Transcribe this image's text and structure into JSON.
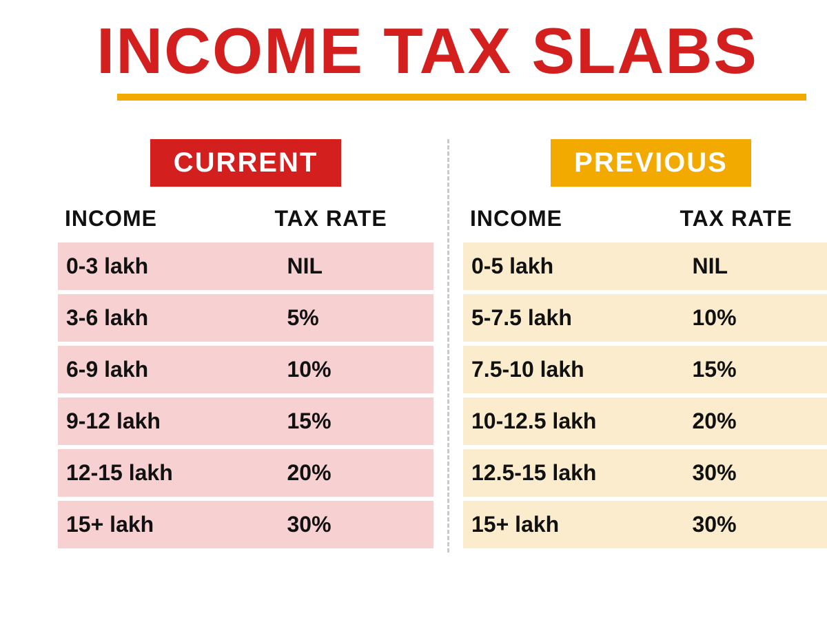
{
  "title": "INCOME TAX SLABS",
  "title_color": "#d41f1f",
  "underline_color": "#f2a900",
  "background_color": "#ffffff",
  "text_color": "#111111",
  "divider_color": "#c9c9c9",
  "columns": {
    "income_label": "INCOME",
    "rate_label": "TAX RATE"
  },
  "left": {
    "badge": "CURRENT",
    "badge_bg": "#d41f1f",
    "badge_text": "#ffffff",
    "row_bg": "#f7d0d2",
    "rows": [
      {
        "income": "0-3 lakh",
        "rate": "NIL"
      },
      {
        "income": "3-6 lakh",
        "rate": "5%"
      },
      {
        "income": "6-9 lakh",
        "rate": "10%"
      },
      {
        "income": "9-12 lakh",
        "rate": "15%"
      },
      {
        "income": "12-15 lakh",
        "rate": "20%"
      },
      {
        "income": "15+ lakh",
        "rate": "30%"
      }
    ]
  },
  "right": {
    "badge": "PREVIOUS",
    "badge_bg": "#f2a900",
    "badge_text": "#ffffff",
    "row_bg": "#faeccd",
    "rows": [
      {
        "income": "0-5 lakh",
        "rate": "NIL"
      },
      {
        "income": "5-7.5 lakh",
        "rate": "10%"
      },
      {
        "income": "7.5-10 lakh",
        "rate": "15%"
      },
      {
        "income": "10-12.5 lakh",
        "rate": "20%"
      },
      {
        "income": "12.5-15 lakh",
        "rate": "30%"
      },
      {
        "income": "15+ lakh",
        "rate": "30%"
      }
    ]
  },
  "fonts": {
    "title_pt": 94,
    "badge_pt": 40,
    "header_pt": 32,
    "row_pt": 32
  }
}
